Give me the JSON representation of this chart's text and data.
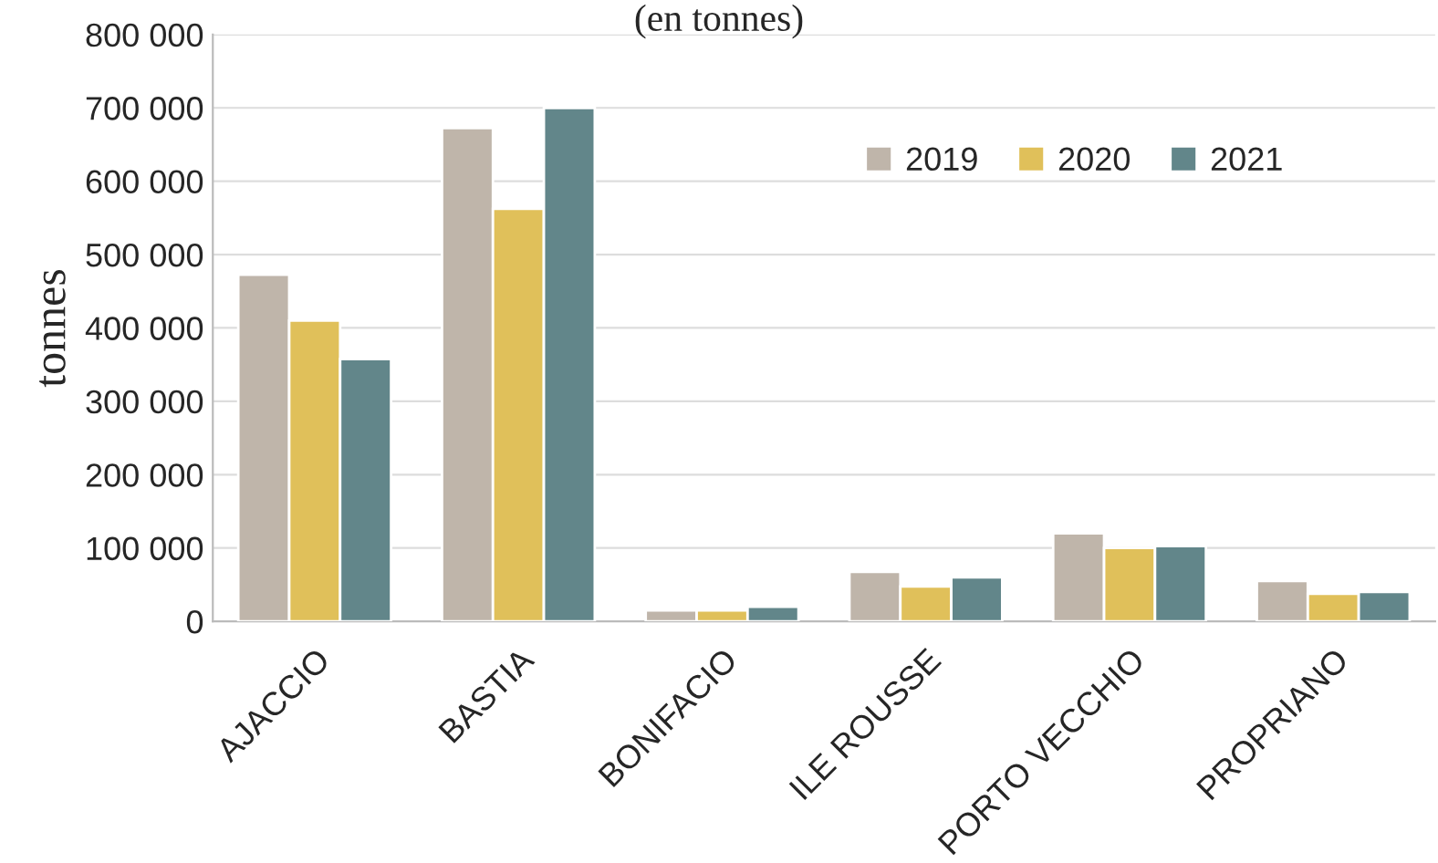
{
  "chart_data": {
    "type": "bar",
    "title": "(en tonnes)",
    "ylabel": "tonnes",
    "categories": [
      "AJACCIO",
      "BASTIA",
      "BONIFACIO",
      "ILE ROUSSE",
      "PORTO VECCHIO",
      "PROPRIANO"
    ],
    "series": [
      {
        "name": "2019",
        "color": "#bfb5aa",
        "values": [
          472500,
          672500,
          15000,
          67500,
          120000,
          55000
        ]
      },
      {
        "name": "2020",
        "color": "#e0c05a",
        "values": [
          410000,
          562500,
          15000,
          47500,
          100000,
          37500
        ]
      },
      {
        "name": "2021",
        "color": "#62868a",
        "values": [
          357500,
          700000,
          20000,
          60000,
          102500,
          40000
        ]
      }
    ],
    "ylim": [
      0,
      800000
    ],
    "yticks": [
      0,
      {
        "value": 100000,
        "label": "100 000"
      },
      {
        "value": 200000,
        "label": "200 000"
      },
      {
        "value": 300000,
        "label": "300 000"
      },
      {
        "value": 400000,
        "label": "400 000"
      },
      {
        "value": 500000,
        "label": "500 000"
      },
      {
        "value": 600000,
        "label": "600 000"
      },
      {
        "value": 700000,
        "label": "700 000"
      },
      {
        "value": 800000,
        "label": "800 000"
      }
    ],
    "grid": "y",
    "legend": "top right"
  }
}
